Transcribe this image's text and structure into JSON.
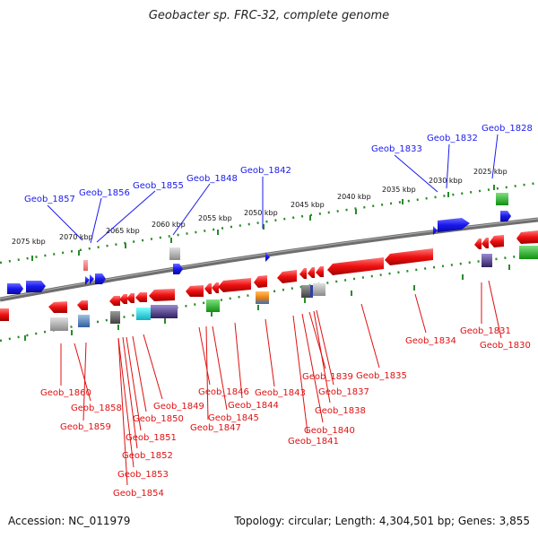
{
  "title": "Geobacter sp. FRC-32, complete genome",
  "accession_text": "Accession: NC_011979",
  "topology_text": "Topology: circular; Length: 4,304,501 bp; Genes: 3,855",
  "scale": {
    "ticks": [
      {
        "label": "2075 kbp",
        "kbp": 2075
      },
      {
        "label": "2070 kbp",
        "kbp": 2070
      },
      {
        "label": "2065 kbp",
        "kbp": 2065
      },
      {
        "label": "2060 kbp",
        "kbp": 2060
      },
      {
        "label": "2055 kbp",
        "kbp": 2055
      },
      {
        "label": "2050 kbp",
        "kbp": 2050
      },
      {
        "label": "2045 kbp",
        "kbp": 2045
      },
      {
        "label": "2040 kbp",
        "kbp": 2040
      },
      {
        "label": "2035 kbp",
        "kbp": 2035
      },
      {
        "label": "2030 kbp",
        "kbp": 2030
      },
      {
        "label": "2025 kbp",
        "kbp": 2025
      }
    ]
  },
  "colors": {
    "forward": "#1a1aee",
    "reverse": "#e01010",
    "backbone": "#7a7a7a",
    "tick": "#2a8a2a"
  },
  "forward_labels": [
    "Geob_1857",
    "Geob_1856",
    "Geob_1855",
    "Geob_1848",
    "Geob_1842",
    "Geob_1833",
    "Geob_1832",
    "Geob_1828"
  ],
  "reverse_labels": [
    "Geob_1860",
    "Geob_1858",
    "Geob_1859",
    "Geob_1849",
    "Geob_1850",
    "Geob_1851",
    "Geob_1852",
    "Geob_1853",
    "Geob_1854",
    "Geob_1846",
    "Geob_1845",
    "Geob_1847",
    "Geob_1844",
    "Geob_1843",
    "Geob_1839",
    "Geob_1837",
    "Geob_1838",
    "Geob_1840",
    "Geob_1841",
    "Geob_1835",
    "Geob_1834",
    "Geob_1831",
    "Geob_1830"
  ]
}
